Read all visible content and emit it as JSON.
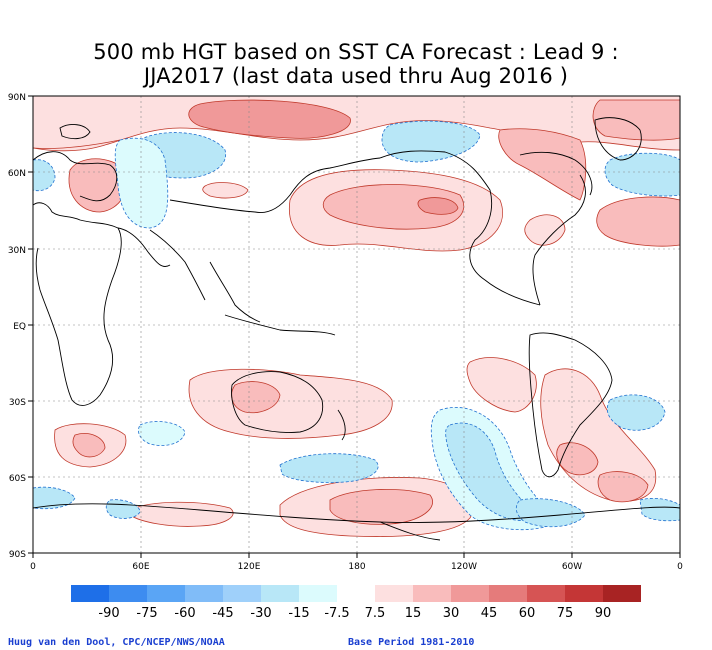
{
  "title": {
    "line1": "500 mb HGT based on SST CA Forecast : Lead 9 :",
    "line2": "JJA2017 (last data used thru Aug 2016 )"
  },
  "axes": {
    "lat_labels": [
      "90N",
      "60N",
      "30N",
      "EQ",
      "30S",
      "60S",
      "90S"
    ],
    "lon_labels": [
      "0",
      "60E",
      "120E",
      "180",
      "120W",
      "60W",
      "0"
    ]
  },
  "colorbar": {
    "labels": [
      "-90",
      "-75",
      "-60",
      "-45",
      "-30",
      "-15",
      "-7.5",
      "7.5",
      "15",
      "30",
      "45",
      "60",
      "75",
      "90"
    ],
    "colors": [
      "#1e6fe8",
      "#3d8cf0",
      "#5aa5f5",
      "#80bcf8",
      "#9fd0fa",
      "#b8e7f7",
      "#dcfbfd",
      "#ffffff",
      "#fde0e0",
      "#f9bcbc",
      "#f09999",
      "#e57b7b",
      "#d65454",
      "#c43636",
      "#a82323"
    ]
  },
  "footer": {
    "left": "Huug van den Dool, CPC/NCEP/NWS/NOAA",
    "right": "Base Period 1981-2010"
  },
  "colors": {
    "positive_light": "#fde0e0",
    "positive_mid": "#f9bcbc",
    "positive_dark": "#f09999",
    "negative_light": "#dcfbfd",
    "negative_mid": "#b8e7f7",
    "positive_contour": "#c0392b",
    "negative_contour": "#1f6fcf",
    "footer_text": "#1a3fd0"
  }
}
